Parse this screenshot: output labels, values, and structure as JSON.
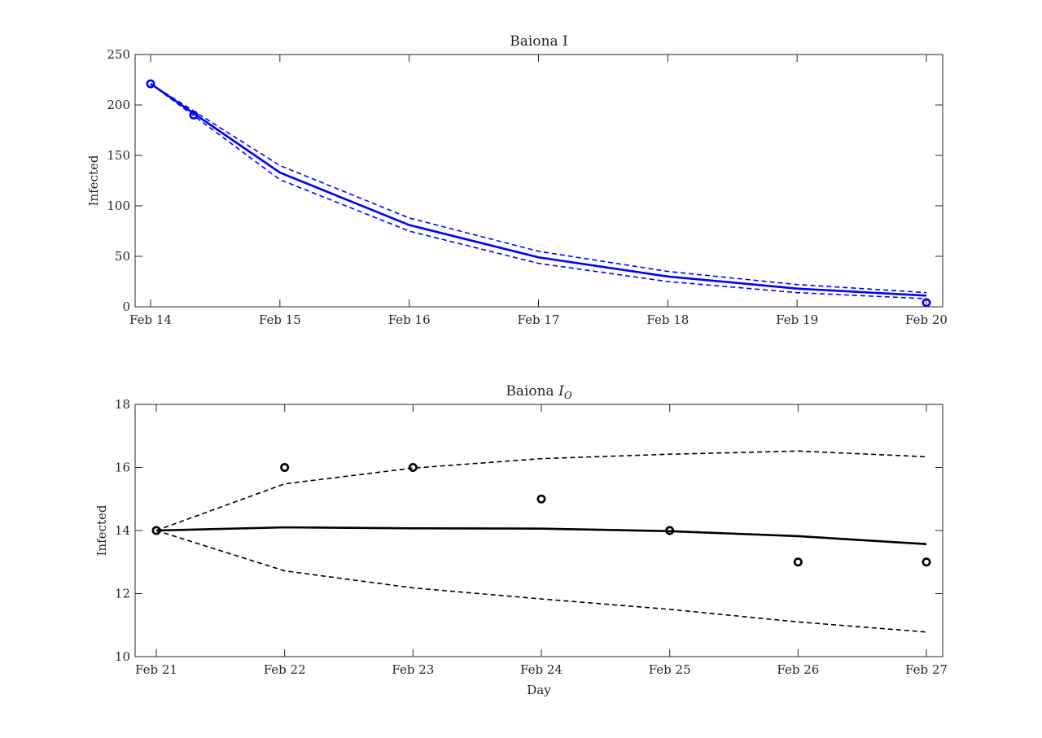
{
  "chart_data": [
    {
      "type": "line",
      "title": "Baiona I",
      "xlabel": "",
      "ylabel": "Infected",
      "color": "#0000ff",
      "x": [
        0,
        1,
        2,
        3,
        4,
        5,
        6
      ],
      "xtick_labels": [
        "Feb 14",
        "Feb 15",
        "Feb 16",
        "Feb 17",
        "Feb 18",
        "Feb 19",
        "Feb 20"
      ],
      "ylim": [
        0,
        250
      ],
      "yticks": [
        0,
        50,
        100,
        150,
        200,
        250
      ],
      "series": [
        {
          "style": "solid",
          "values": [
            221,
            133,
            81,
            49,
            30,
            18,
            11
          ]
        },
        {
          "style": "dashed",
          "values": [
            221,
            140,
            88,
            55,
            35,
            22,
            14
          ]
        },
        {
          "style": "dashed",
          "values": [
            221,
            126,
            75,
            43,
            25,
            14,
            8
          ]
        }
      ],
      "observed": {
        "x": [
          0,
          0.333,
          6
        ],
        "values": [
          221,
          190,
          4
        ]
      },
      "grid": false,
      "legend": "none"
    },
    {
      "type": "line",
      "title_main": "Baiona ",
      "title_sym": "I",
      "title_sub": "O",
      "xlabel": "Day",
      "ylabel": "Infected",
      "color": "#000000",
      "x": [
        0,
        1,
        2,
        3,
        4,
        5,
        6
      ],
      "xtick_labels": [
        "Feb 21",
        "Feb 22",
        "Feb 23",
        "Feb 24",
        "Feb 25",
        "Feb 26",
        "Feb 27"
      ],
      "ylim": [
        10,
        18
      ],
      "yticks": [
        10,
        12,
        14,
        16,
        18
      ],
      "series": [
        {
          "style": "solid",
          "values": [
            14,
            14.1,
            14.07,
            14.06,
            13.98,
            13.82,
            13.57
          ]
        },
        {
          "style": "dashed",
          "values": [
            14,
            15.48,
            15.98,
            16.28,
            16.42,
            16.52,
            16.34
          ]
        },
        {
          "style": "dashed",
          "values": [
            14,
            12.72,
            12.18,
            11.83,
            11.5,
            11.1,
            10.78
          ]
        }
      ],
      "observed": {
        "x": [
          0,
          1,
          2,
          3,
          4,
          5,
          6
        ],
        "values": [
          14,
          16,
          16,
          15,
          14,
          13,
          13
        ]
      },
      "grid": false,
      "legend": "none"
    }
  ]
}
